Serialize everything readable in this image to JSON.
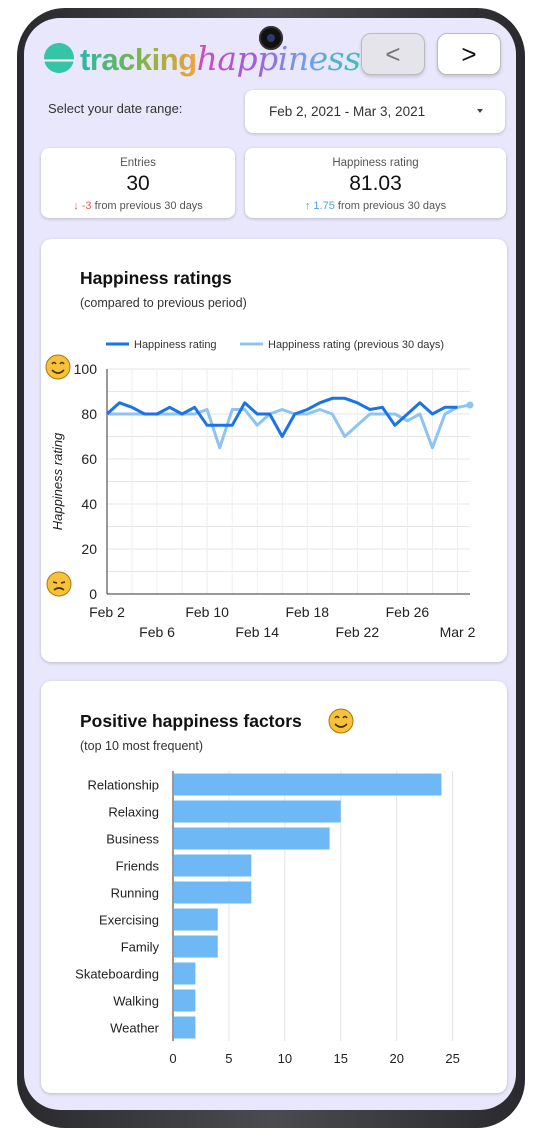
{
  "header": {
    "logo_word1": "tracking",
    "logo_word2": "happiness",
    "prev_label": "<",
    "next_label": ">"
  },
  "date_range": {
    "label": "Select your date range:",
    "value": "Feb 2, 2021 - Mar 3, 2021"
  },
  "kpis": [
    {
      "label": "Entries",
      "value": "30",
      "delta_arrow": "↓",
      "delta_value": "-3",
      "delta_text": "from previous 30 days",
      "delta_color": "#e25b57"
    },
    {
      "label": "Happiness rating",
      "value": "81.03",
      "delta_arrow": "↑",
      "delta_value": "1.75",
      "delta_text": "from previous 30 days",
      "delta_color": "#4fa2e6"
    }
  ],
  "ratings_card": {
    "title": "Happiness ratings",
    "subtitle": "(compared to previous period)"
  },
  "factors_card": {
    "title": "Positive happiness factors",
    "subtitle": "(top 10 most frequent)"
  },
  "colors": {
    "accent": "#1a73e8",
    "accent_light": "#8fc3f0",
    "bar": "#6db8f5",
    "background": "#e8e7fb"
  },
  "chart_data": [
    {
      "type": "line",
      "ylabel": "Happiness rating",
      "ylim": [
        0,
        100
      ],
      "yticks": [
        0,
        20,
        40,
        60,
        80,
        100
      ],
      "xticks_top": [
        "Feb 2",
        "Feb 10",
        "Feb 18",
        "Feb 26"
      ],
      "xticks_bottom": [
        "Feb 6",
        "Feb 14",
        "Feb 22",
        "Mar 2"
      ],
      "x": [
        "Feb 2",
        "Feb 3",
        "Feb 4",
        "Feb 5",
        "Feb 6",
        "Feb 7",
        "Feb 8",
        "Feb 9",
        "Feb 10",
        "Feb 11",
        "Feb 12",
        "Feb 13",
        "Feb 14",
        "Feb 15",
        "Feb 16",
        "Feb 17",
        "Feb 18",
        "Feb 19",
        "Feb 20",
        "Feb 21",
        "Feb 22",
        "Feb 23",
        "Feb 24",
        "Feb 25",
        "Feb 26",
        "Feb 27",
        "Feb 28",
        "Mar 1",
        "Mar 2",
        "Mar 3"
      ],
      "series": [
        {
          "name": "Happiness rating",
          "color": "#1a73e8",
          "values": [
            80,
            85,
            83,
            80,
            80,
            83,
            80,
            83,
            75,
            75,
            75,
            85,
            80,
            80,
            70,
            80,
            82,
            85,
            87,
            87,
            85,
            82,
            83,
            75,
            80,
            85,
            80,
            83,
            83,
            null
          ]
        },
        {
          "name": "Happiness rating (previous 30 days)",
          "color": "#8fc3f0",
          "values": [
            80,
            80,
            80,
            80,
            80,
            80,
            80,
            80,
            82,
            65,
            82,
            82,
            75,
            80,
            82,
            80,
            80,
            82,
            80,
            70,
            75,
            80,
            80,
            80,
            77,
            80,
            65,
            80,
            83,
            84
          ]
        }
      ],
      "legend": "top",
      "grid": true
    },
    {
      "type": "bar",
      "orientation": "horizontal",
      "categories": [
        "Relationship",
        "Relaxing",
        "Business",
        "Friends",
        "Running",
        "Exercising",
        "Family",
        "Skateboarding",
        "Walking",
        "Weather"
      ],
      "values": [
        24,
        15,
        14,
        7,
        7,
        4,
        4,
        2,
        2,
        2
      ],
      "xlim": [
        0,
        27
      ],
      "xticks": [
        0,
        5,
        10,
        15,
        20,
        25
      ],
      "color": "#6db8f5",
      "grid": true
    }
  ]
}
